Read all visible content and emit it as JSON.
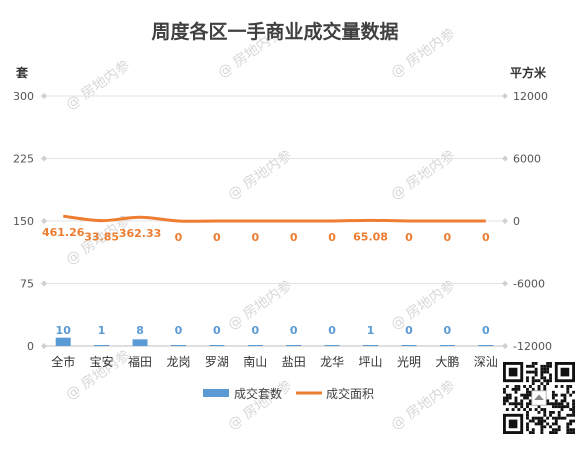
{
  "chart_data": {
    "type": "bar+line",
    "title": "周度各区一手商业成交量数据",
    "ylabel_left": "套",
    "ylabel_right": "平方米",
    "ylim_left": [
      0,
      300
    ],
    "ylim_right": [
      -12000,
      12000
    ],
    "yticks_left": [
      "0",
      "75",
      "150",
      "225",
      "300"
    ],
    "yticks_right": [
      "-12000",
      "-6000",
      "0",
      "6000",
      "12000"
    ],
    "categories": [
      "全市",
      "宝安",
      "福田",
      "龙岗",
      "罗湖",
      "南山",
      "盐田",
      "龙华",
      "坪山",
      "光明",
      "大鹏",
      "深汕"
    ],
    "series": [
      {
        "name": "成交套数",
        "type": "bar",
        "axis": "left",
        "color": "#5b9bd5",
        "values": [
          10,
          1,
          8,
          0,
          0,
          0,
          0,
          0,
          1,
          0,
          0,
          0
        ],
        "labels": [
          "10",
          "1",
          "8",
          "0",
          "0",
          "0",
          "0",
          "0",
          "1",
          "0",
          "0",
          "0"
        ]
      },
      {
        "name": "成交面积",
        "type": "line",
        "axis": "right",
        "color": "#ed7d31",
        "values": [
          461.26,
          33.85,
          362.33,
          0,
          0,
          0,
          0,
          0,
          65.08,
          0,
          0,
          0
        ],
        "labels": [
          "461.26",
          "33.85",
          "362.33",
          "0",
          "0",
          "0",
          "0",
          "0",
          "65.08",
          "0",
          "0",
          "0"
        ]
      }
    ],
    "legend_position": "bottom",
    "grid": true
  },
  "watermark": "@ 房地内参",
  "qr_icon": "qr-code-icon"
}
